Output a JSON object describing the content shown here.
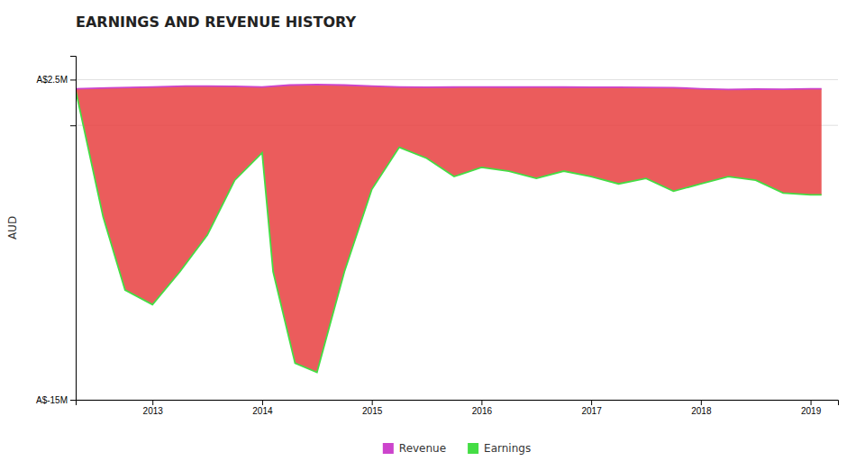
{
  "chart_data": {
    "type": "area",
    "title": "EARNINGS AND REVENUE HISTORY",
    "y_label": "AUD",
    "color": "#e84040",
    "xlim": [
      2012.3,
      2019.25
    ],
    "xticks": [
      2013,
      2014,
      2015,
      2016,
      2017,
      2018,
      2019
    ],
    "ylim": [
      -15000000,
      3800000
    ],
    "yticks": [
      {
        "value": -15000000,
        "label": "A$-15M"
      },
      {
        "value": 0,
        "label": ""
      },
      {
        "value": 2500000,
        "label": "A$2.5M"
      }
    ],
    "grid": true,
    "legend": "bottom",
    "series": [
      {
        "name": "Revenue",
        "color": "#cc44cc",
        "x": [
          2012.3,
          2012.6,
          2013.0,
          2013.3,
          2013.5,
          2013.75,
          2014.0,
          2014.25,
          2014.5,
          2014.75,
          2015.0,
          2015.25,
          2015.5,
          2015.75,
          2016.0,
          2016.25,
          2016.5,
          2016.75,
          2017.0,
          2017.25,
          2017.5,
          2017.75,
          2018.0,
          2018.25,
          2018.5,
          2018.75,
          2019.0,
          2019.1
        ],
        "values": [
          2000000,
          2050000,
          2100000,
          2150000,
          2150000,
          2130000,
          2100000,
          2200000,
          2230000,
          2200000,
          2150000,
          2100000,
          2080000,
          2090000,
          2100000,
          2090000,
          2100000,
          2090000,
          2080000,
          2080000,
          2070000,
          2060000,
          2000000,
          1960000,
          1980000,
          1970000,
          2000000,
          2000000
        ]
      },
      {
        "name": "Earnings",
        "color": "#44dd44",
        "x": [
          2012.3,
          2012.55,
          2012.75,
          2013.0,
          2013.25,
          2013.5,
          2013.75,
          2014.0,
          2014.1,
          2014.3,
          2014.5,
          2014.75,
          2015.0,
          2015.25,
          2015.5,
          2015.75,
          2016.0,
          2016.25,
          2016.5,
          2016.75,
          2017.0,
          2017.25,
          2017.5,
          2017.75,
          2018.0,
          2018.25,
          2018.5,
          2018.75,
          2019.0,
          2019.1
        ],
        "values": [
          1900000,
          -5000000,
          -9000000,
          -9800000,
          -8000000,
          -6000000,
          -3000000,
          -1500000,
          -8000000,
          -13000000,
          -13500000,
          -8000000,
          -3500000,
          -1200000,
          -1800000,
          -2800000,
          -2300000,
          -2500000,
          -2900000,
          -2500000,
          -2800000,
          -3200000,
          -2900000,
          -3600000,
          -3200000,
          -2800000,
          -3000000,
          -3700000,
          -3800000,
          -3800000
        ]
      }
    ]
  }
}
